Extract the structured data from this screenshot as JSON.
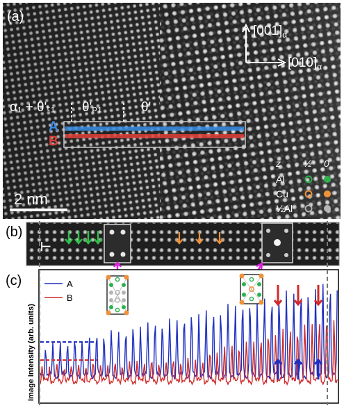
{
  "panel_a": {
    "label": "(a)",
    "axis_up": "[001]",
    "axis_right": "[010]",
    "axis_subscript": "α",
    "region_1": "α₁ + θ'ₜ₁",
    "region_2": "θ'ₚ₁",
    "region_3": "θ'",
    "band_a_label": "A",
    "band_b_label": "B",
    "scale_bar": "2 nm",
    "legend": {
      "z_label": "z",
      "col_half": "½",
      "col_zero": "0",
      "rows": [
        {
          "name": "Al",
          "color": "#2bb24c"
        },
        {
          "name": "Cu",
          "color": "#f0923a"
        },
        {
          "name": "½Al",
          "color": "#b5b5b5"
        }
      ]
    }
  },
  "panel_b": {
    "label": "(b)",
    "dislocation_symbol": "⊢",
    "green_arrow_count": 4,
    "orange_arrow_count": 3
  },
  "panel_c": {
    "label": "(c)",
    "ylabel": "Image Intensity (arb. units)",
    "legend": [
      {
        "name": "A",
        "color": "#1f2fbf"
      },
      {
        "name": "B",
        "color": "#d12a2a"
      }
    ],
    "red_arrow_count": 3,
    "blue_arrow_count": 3
  },
  "colors": {
    "band_a": "#3b8ee6",
    "band_b": "#e0403a",
    "green_arrow": "#2fbf4a",
    "orange_arrow": "#f0923a",
    "magenta_arrow": "#e020e0",
    "line_a": "#1f2fbf",
    "line_b": "#d12a2a"
  }
}
